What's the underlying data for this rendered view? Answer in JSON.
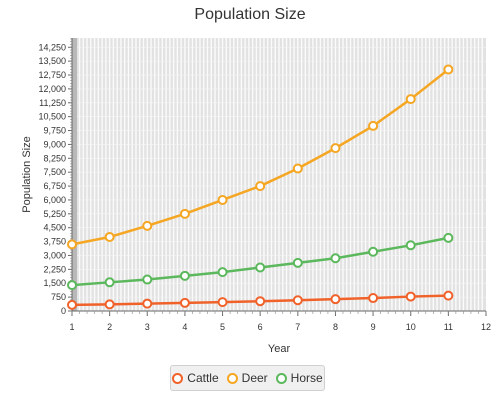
{
  "chart_data": {
    "type": "line",
    "title": "Population Size",
    "xlabel": "Year",
    "ylabel": "Population Size",
    "xlim": [
      1,
      12
    ],
    "ylim": [
      0,
      14750
    ],
    "x_ticks": [
      1,
      2,
      3,
      4,
      5,
      6,
      7,
      8,
      9,
      10,
      11,
      12
    ],
    "y_ticks": [
      0,
      750,
      1500,
      2250,
      3000,
      3750,
      4500,
      5250,
      6000,
      6750,
      7500,
      8250,
      9000,
      9750,
      10500,
      11250,
      12000,
      12750,
      13500,
      14250
    ],
    "y_tick_labels": [
      "0",
      "750",
      "1,500",
      "2,250",
      "3,000",
      "3,750",
      "4,500",
      "5,250",
      "6,000",
      "6,750",
      "7,500",
      "8,250",
      "9,000",
      "9,750",
      "10,500",
      "11,250",
      "12,000",
      "12,750",
      "13,500",
      "14,250"
    ],
    "x": [
      1,
      2,
      3,
      4,
      5,
      6,
      7,
      8,
      9,
      10,
      11
    ],
    "series": [
      {
        "name": "Cattle",
        "color": "#f0622a",
        "values": [
          330,
          360,
          400,
          440,
          480,
          530,
          580,
          640,
          700,
          780,
          830
        ]
      },
      {
        "name": "Deer",
        "color": "#f5a623",
        "values": [
          3600,
          4000,
          4600,
          5250,
          6000,
          6750,
          7700,
          8800,
          10000,
          11450,
          13050
        ]
      },
      {
        "name": "Horse",
        "color": "#5cb85c",
        "values": [
          1400,
          1550,
          1700,
          1900,
          2100,
          2350,
          2600,
          2850,
          3200,
          3550,
          3950
        ]
      }
    ],
    "grid": true,
    "legend_position": "bottom"
  }
}
